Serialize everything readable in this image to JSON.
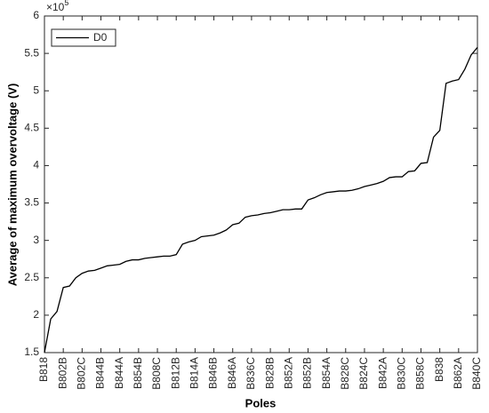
{
  "chart_data": {
    "type": "line",
    "x_label": "Poles",
    "y_label": "Average of maximum overvoltage (V)",
    "y_exponent_base": "×10",
    "y_exponent": "5",
    "categories": [
      "B818",
      null,
      null,
      "B802B",
      null,
      null,
      "B802C",
      null,
      null,
      "B844B",
      null,
      null,
      "B844A",
      null,
      null,
      "B854B",
      null,
      null,
      "B808C",
      null,
      null,
      "B812B",
      null,
      null,
      "B814A",
      null,
      null,
      "B846B",
      null,
      null,
      "B846A",
      null,
      null,
      "B836C",
      null,
      null,
      "B828B",
      null,
      null,
      "B852A",
      null,
      null,
      "B852B",
      null,
      null,
      "B854A",
      null,
      null,
      "B828C",
      null,
      null,
      "B824C",
      null,
      null,
      "B842A",
      null,
      null,
      "B830C",
      null,
      null,
      "B858C",
      null,
      null,
      "B838",
      null,
      null,
      "B862A",
      null,
      null,
      "B840C"
    ],
    "series": [
      {
        "name": "D0",
        "color": "#000000",
        "values": [
          1.5,
          1.95,
          2.05,
          2.37,
          2.39,
          2.5,
          2.56,
          2.59,
          2.6,
          2.63,
          2.66,
          2.67,
          2.68,
          2.72,
          2.74,
          2.74,
          2.76,
          2.77,
          2.78,
          2.79,
          2.79,
          2.81,
          2.95,
          2.98,
          3.0,
          3.05,
          3.06,
          3.07,
          3.1,
          3.14,
          3.21,
          3.23,
          3.31,
          3.33,
          3.34,
          3.36,
          3.37,
          3.39,
          3.41,
          3.41,
          3.42,
          3.42,
          3.54,
          3.57,
          3.61,
          3.64,
          3.65,
          3.66,
          3.66,
          3.67,
          3.69,
          3.72,
          3.74,
          3.76,
          3.79,
          3.84,
          3.85,
          3.85,
          3.92,
          3.93,
          4.03,
          4.04,
          4.38,
          4.47,
          5.1,
          5.13,
          5.15,
          5.29,
          5.48,
          5.58
        ]
      }
    ],
    "ylim": [
      1.5,
      6
    ],
    "yticks": [
      1.5,
      2,
      2.5,
      3,
      3.5,
      4,
      4.5,
      5,
      5.5,
      6
    ],
    "legend": "upper left"
  }
}
